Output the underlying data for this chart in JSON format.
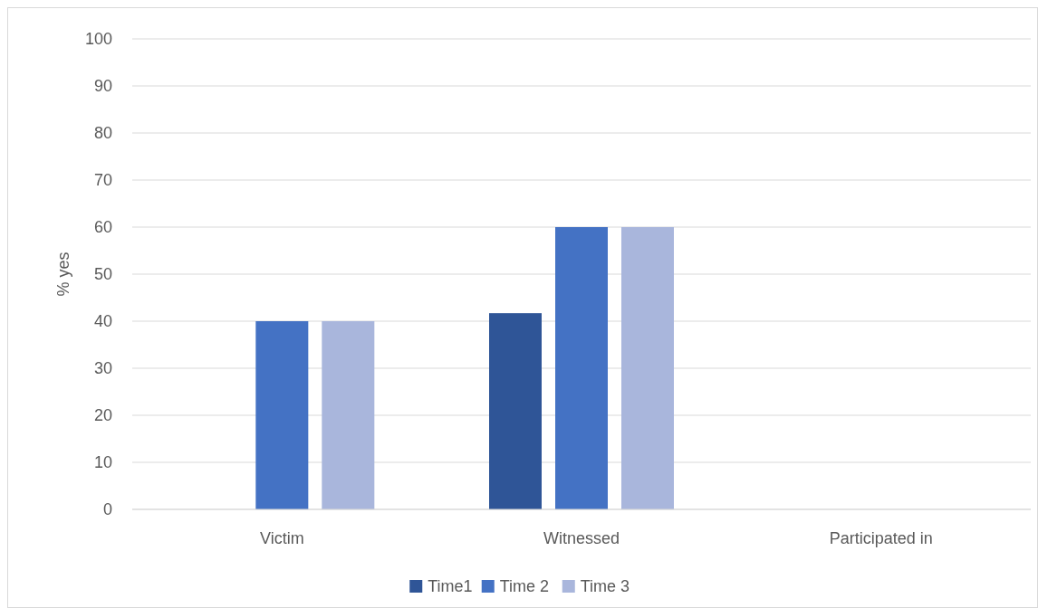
{
  "chart_data": {
    "type": "bar",
    "ylabel": "% yes",
    "categories": [
      "Victim",
      "Witnessed",
      "Participated in"
    ],
    "series": [
      {
        "name": "Time1",
        "color": "#2f5597",
        "values": [
          0,
          41.7,
          0
        ]
      },
      {
        "name": "Time 2",
        "color": "#4472c4",
        "values": [
          40,
          60,
          0
        ]
      },
      {
        "name": "Time 3",
        "color": "#a9b6dc",
        "values": [
          40,
          60,
          0
        ]
      }
    ],
    "ylim": [
      0,
      100
    ],
    "yticks": [
      0,
      10,
      20,
      30,
      40,
      50,
      60,
      70,
      80,
      90,
      100
    ],
    "grid": "y",
    "legend": "bottom"
  }
}
